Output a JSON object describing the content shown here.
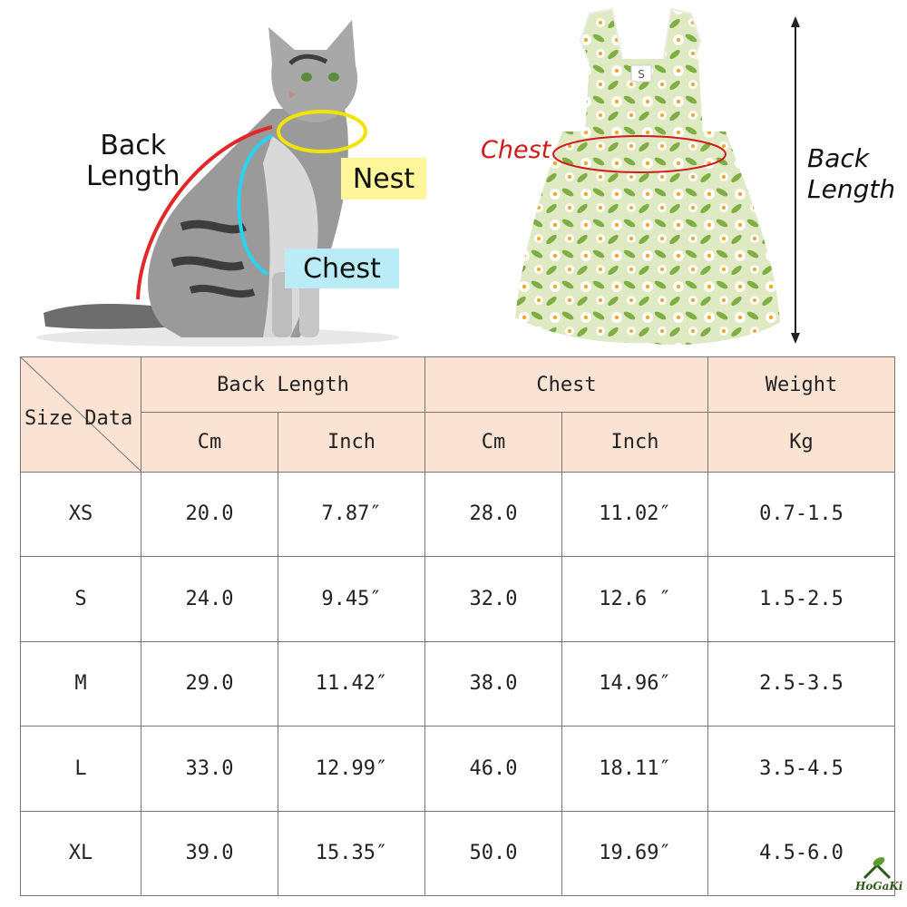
{
  "illustrations": {
    "cat": {
      "back_length_line1": "Back",
      "back_length_line2": "Length",
      "nest_label": "Nest",
      "chest_label": "Chest",
      "colors": {
        "back_arc": "#e02828",
        "nest_ring": "#f2e400",
        "chest_arc": "#2ad2f0",
        "nest_tag": "#fff59a",
        "chest_tag": "#b9ecf6"
      }
    },
    "dress": {
      "size_tag": "S",
      "chest_label": "Chest",
      "back_length_line1": "Back",
      "back_length_line2": "Length",
      "colors": {
        "chest_ring": "#d11a1a",
        "fabric": "#dfe9c4",
        "leaf": "#7fae44",
        "flower": "#ffffff",
        "flower_center": "#f4a62a"
      }
    }
  },
  "table": {
    "corner_label": "Size Data",
    "groups": [
      "Back Length",
      "Chest",
      "Weight"
    ],
    "units": [
      "Cm",
      "Inch",
      "Cm",
      "Inch",
      "Kg"
    ],
    "rows": [
      [
        "XS",
        "20.0",
        "7.87″",
        "28.0",
        "11.02″",
        "0.7-1.5"
      ],
      [
        "S",
        "24.0",
        "9.45″",
        "32.0",
        "12.6 ″",
        "1.5-2.5"
      ],
      [
        "M",
        "29.0",
        "11.42″",
        "38.0",
        "14.96″",
        "2.5-3.5"
      ],
      [
        "L",
        "33.0",
        "12.99″",
        "46.0",
        "18.11″",
        "3.5-4.5"
      ],
      [
        "XL",
        "39.0",
        "15.35″",
        "50.0",
        "19.69″",
        "4.5-6.0"
      ]
    ],
    "header_color": "#fbe3d4"
  },
  "logo": {
    "text": "HoGaKi",
    "icon": "leaf-house-icon"
  }
}
